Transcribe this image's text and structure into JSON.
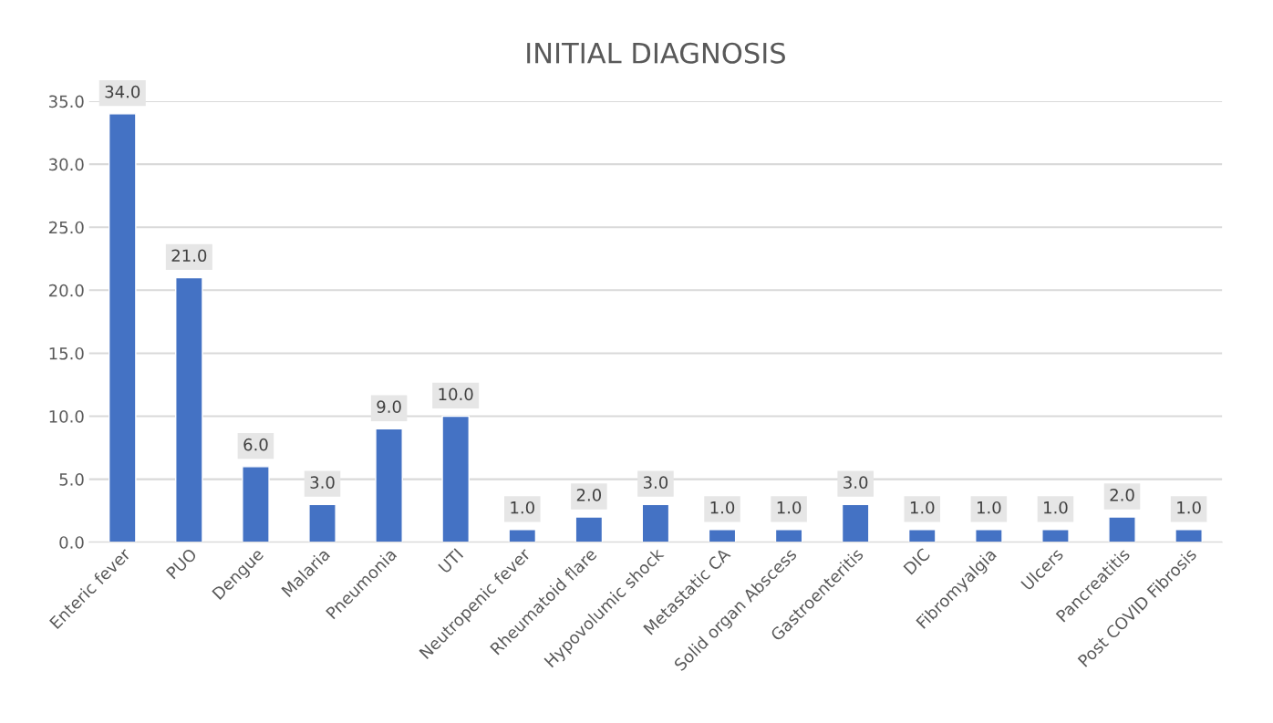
{
  "chart_data": {
    "type": "bar",
    "title": "INITIAL DIAGNOSIS",
    "categories": [
      "Enteric fever",
      "PUO",
      "Dengue",
      "Malaria",
      "Pneumonia",
      "UTI",
      "Neutropenic fever",
      "Rheumatoid flare",
      "Hypovolumic shock",
      "Metastatic CA",
      "Solid organ Abscess",
      "Gastroenteritis",
      "DIC",
      "Fibromyalgia",
      "Ulcers",
      "Pancreatitis",
      "Post COVID Fibrosis"
    ],
    "values": [
      34,
      21,
      6,
      3,
      9,
      10,
      1,
      2,
      3,
      1,
      1,
      3,
      1,
      1,
      1,
      2,
      1
    ],
    "value_labels": [
      "34.0",
      "21.0",
      "6.0",
      "3.0",
      "9.0",
      "10.0",
      "1.0",
      "2.0",
      "3.0",
      "1.0",
      "1.0",
      "3.0",
      "1.0",
      "1.0",
      "1.0",
      "2.0",
      "1.0"
    ],
    "color": "#4472c4",
    "ylim": [
      0,
      35
    ],
    "yticks": [
      {
        "value": 0,
        "label": "0.0"
      },
      {
        "value": 5,
        "label": "5.0"
      },
      {
        "value": 10,
        "label": "10.0"
      },
      {
        "value": 15,
        "label": "15.0"
      },
      {
        "value": 20,
        "label": "20.0"
      },
      {
        "value": 25,
        "label": "25.0"
      },
      {
        "value": 30,
        "label": "30.0"
      },
      {
        "value": 35,
        "label": "35.0"
      }
    ],
    "grid": "y",
    "legend": false
  }
}
